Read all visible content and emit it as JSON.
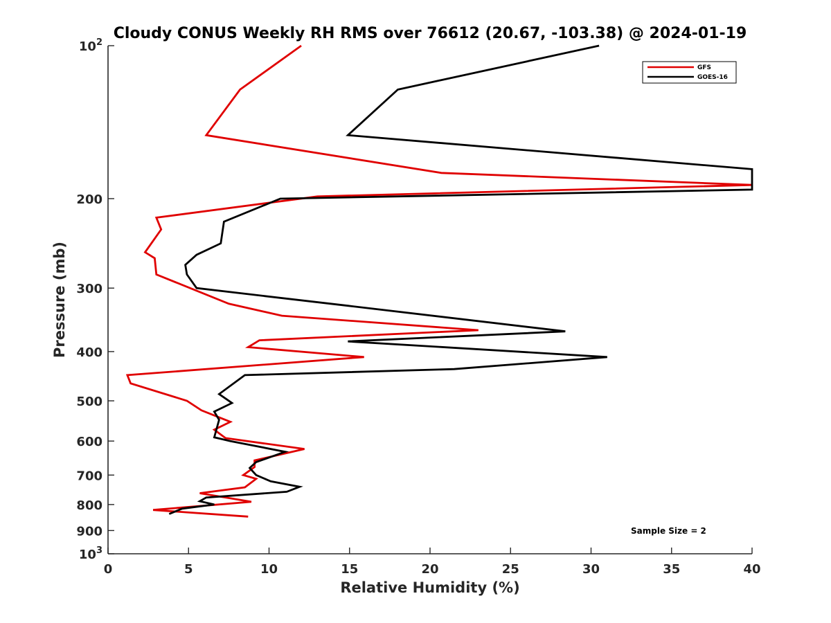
{
  "chart_data": {
    "type": "line",
    "title": "Cloudy CONUS Weekly RH RMS over 76612 (20.67, -103.38) @ 2024-01-19",
    "xlabel": "Relative Humidity (%)",
    "ylabel": "Pressure (mb)",
    "xlim": [
      0,
      40
    ],
    "ylim": [
      100,
      1000
    ],
    "yscale": "log",
    "y_reversed": true,
    "x_ticks": [
      0,
      5,
      10,
      15,
      20,
      25,
      30,
      35,
      40
    ],
    "x_tick_labels": [
      "0",
      "5",
      "10",
      "15",
      "20",
      "25",
      "30",
      "35",
      "40"
    ],
    "y_ticks": [
      100,
      200,
      300,
      400,
      500,
      600,
      700,
      800,
      900,
      1000
    ],
    "y_tick_labels": [
      {
        "base": "10",
        "exp": "2"
      },
      {
        "base": "200",
        "exp": ""
      },
      {
        "base": "300",
        "exp": ""
      },
      {
        "base": "400",
        "exp": ""
      },
      {
        "base": "500",
        "exp": ""
      },
      {
        "base": "600",
        "exp": ""
      },
      {
        "base": "700",
        "exp": ""
      },
      {
        "base": "800",
        "exp": ""
      },
      {
        "base": "900",
        "exp": ""
      },
      {
        "base": "10",
        "exp": "3"
      }
    ],
    "legend_position": "top-right",
    "annotation": "Sample Size = 2",
    "series": [
      {
        "name": "GFS",
        "color": "#e00000",
        "x": [
          12.0,
          8.2,
          6.1,
          20.7,
          40.0,
          13.0,
          3.0,
          3.3,
          2.3,
          2.9,
          3.0,
          7.5,
          10.8,
          23.0,
          9.4,
          8.7,
          15.9,
          1.2,
          1.4,
          4.9,
          5.8,
          7.6,
          6.6,
          7.3,
          12.2,
          9.1,
          9.1,
          8.4,
          9.2,
          8.5,
          5.7,
          8.9,
          2.8,
          8.7
        ],
        "y": [
          100,
          122,
          150,
          178,
          188,
          198,
          218,
          230,
          255,
          262,
          282,
          322,
          340,
          363,
          380,
          392,
          410,
          445,
          462,
          500,
          522,
          550,
          570,
          592,
          622,
          655,
          675,
          700,
          712,
          740,
          760,
          790,
          820,
          845
        ]
      },
      {
        "name": "GOES-16",
        "color": "#000000",
        "x": [
          30.5,
          18.0,
          14.9,
          40.0,
          40.0,
          40.0,
          10.7,
          7.2,
          7.0,
          5.5,
          4.8,
          4.9,
          5.5,
          14.9,
          28.4,
          14.9,
          31.0,
          21.5,
          8.5,
          6.9,
          7.7,
          6.6,
          6.9,
          6.6,
          7.6,
          11.0,
          9.2,
          8.8,
          9.2,
          10.1,
          11.9,
          11.1,
          6.1,
          5.7,
          6.6,
          4.6,
          3.8
        ],
        "y": [
          100,
          122,
          150,
          175,
          188,
          192,
          200,
          222,
          245,
          258,
          270,
          282,
          300,
          325,
          365,
          382,
          410,
          433,
          445,
          485,
          505,
          525,
          545,
          590,
          600,
          630,
          660,
          678,
          700,
          720,
          738,
          755,
          775,
          788,
          800,
          815,
          835
        ]
      }
    ]
  }
}
